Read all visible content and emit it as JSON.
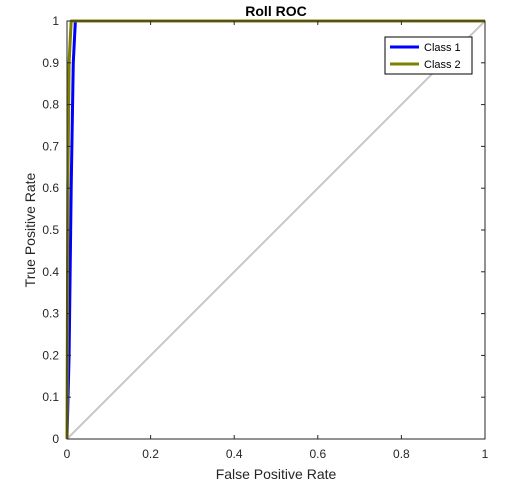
{
  "chart_data": {
    "type": "line",
    "title": "Roll ROC",
    "xlabel": "False Positive Rate",
    "ylabel": "True Positive Rate",
    "xlim": [
      0,
      1
    ],
    "ylim": [
      0,
      1
    ],
    "grid": false,
    "legend_position": "top-right",
    "x_ticks": [
      "0",
      "0.2",
      "0.4",
      "0.6",
      "0.8",
      "1"
    ],
    "y_ticks": [
      "0",
      "0.1",
      "0.2",
      "0.3",
      "0.4",
      "0.5",
      "0.6",
      "0.7",
      "0.8",
      "0.9",
      "1"
    ],
    "x_tick_values": [
      0,
      0.2,
      0.4,
      0.6,
      0.8,
      1
    ],
    "y_tick_values": [
      0,
      0.1,
      0.2,
      0.3,
      0.4,
      0.5,
      0.6,
      0.7,
      0.8,
      0.9,
      1
    ],
    "series": [
      {
        "name": "Class 1",
        "color": "#0000ff",
        "x": [
          0,
          0.005,
          0.01,
          0.015,
          0.02,
          1
        ],
        "y": [
          0,
          0.2,
          0.6,
          0.9,
          1,
          1
        ]
      },
      {
        "name": "Class 2",
        "color": "#808000",
        "x": [
          0,
          0.002,
          0.005,
          0.01,
          1
        ],
        "y": [
          0,
          0.6,
          0.9,
          1,
          1
        ]
      }
    ],
    "reference_line": {
      "color": "#c8c8c8",
      "x": [
        0,
        1
      ],
      "y": [
        0,
        1
      ]
    }
  }
}
